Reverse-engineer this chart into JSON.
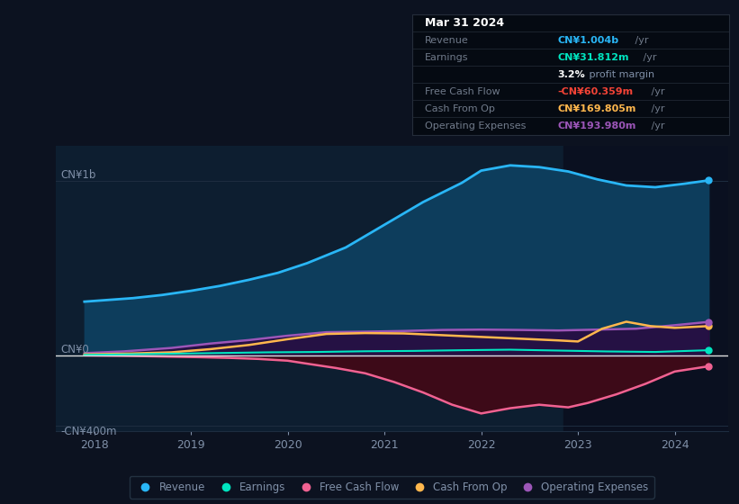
{
  "bg_color": "#0c1220",
  "plot_bg_color": "#0d1e30",
  "ylabel_top": "CN¥1b",
  "ylabel_zero": "CN¥0",
  "ylabel_bottom": "-CN¥400m",
  "ylim": [
    -430,
    1200
  ],
  "xlim": [
    2017.6,
    2024.55
  ],
  "xticks": [
    2018,
    2019,
    2020,
    2021,
    2022,
    2023,
    2024
  ],
  "revenue_x": [
    2017.9,
    2018.1,
    2018.4,
    2018.7,
    2019.0,
    2019.3,
    2019.6,
    2019.9,
    2020.2,
    2020.6,
    2021.0,
    2021.4,
    2021.8,
    2022.0,
    2022.3,
    2022.6,
    2022.9,
    2023.2,
    2023.5,
    2023.8,
    2024.1,
    2024.35
  ],
  "revenue_y": [
    310,
    318,
    330,
    348,
    372,
    400,
    435,
    475,
    530,
    620,
    750,
    880,
    990,
    1060,
    1090,
    1080,
    1055,
    1010,
    975,
    965,
    985,
    1004
  ],
  "earnings_x": [
    2017.9,
    2018.3,
    2018.8,
    2019.3,
    2019.8,
    2020.3,
    2020.8,
    2021.3,
    2021.8,
    2022.3,
    2022.8,
    2023.3,
    2023.8,
    2024.35
  ],
  "earnings_y": [
    5,
    8,
    12,
    16,
    20,
    22,
    26,
    28,
    32,
    35,
    30,
    25,
    22,
    32
  ],
  "fcf_x": [
    2017.9,
    2018.3,
    2018.8,
    2019.1,
    2019.4,
    2019.7,
    2020.0,
    2020.2,
    2020.5,
    2020.8,
    2021.1,
    2021.4,
    2021.7,
    2022.0,
    2022.3,
    2022.6,
    2022.9,
    2023.1,
    2023.4,
    2023.7,
    2024.0,
    2024.35
  ],
  "fcf_y": [
    3,
    0,
    -5,
    -8,
    -12,
    -18,
    -28,
    -45,
    -70,
    -100,
    -150,
    -210,
    -280,
    -330,
    -300,
    -280,
    -295,
    -270,
    -220,
    -160,
    -90,
    -60
  ],
  "cashfromop_x": [
    2017.9,
    2018.3,
    2018.8,
    2019.2,
    2019.6,
    2020.0,
    2020.4,
    2020.8,
    2021.2,
    2021.6,
    2022.0,
    2022.4,
    2022.8,
    2023.0,
    2023.25,
    2023.5,
    2023.75,
    2024.0,
    2024.35
  ],
  "cashfromop_y": [
    8,
    12,
    20,
    38,
    62,
    95,
    125,
    130,
    128,
    118,
    108,
    98,
    88,
    82,
    155,
    195,
    170,
    160,
    170
  ],
  "opex_x": [
    2017.9,
    2018.3,
    2018.8,
    2019.2,
    2019.6,
    2020.0,
    2020.4,
    2020.8,
    2021.2,
    2021.6,
    2022.0,
    2022.4,
    2022.8,
    2023.2,
    2023.6,
    2024.0,
    2024.35
  ],
  "opex_y": [
    15,
    25,
    45,
    70,
    90,
    115,
    135,
    138,
    142,
    148,
    150,
    148,
    145,
    150,
    155,
    175,
    194
  ],
  "revenue_color": "#29b6f6",
  "revenue_fill": "#0d3d5c",
  "earnings_color": "#00e5c0",
  "fcf_color": "#f06292",
  "fcf_fill": "#3d0a18",
  "cashfromop_color": "#ffb74d",
  "opex_color": "#9c56b8",
  "opex_fill": "#2a0a40",
  "highlight_start": 2022.85,
  "highlight_color": "#0a1020",
  "grid_color": "#1e2d40",
  "zero_line_color": "#e0e0e0",
  "text_color": "#8090a8",
  "legend_bg": "#0c1220",
  "legend_border": "#2a3a4a",
  "info_box_bg": "#050a12",
  "info_box_border": "#252d3a",
  "info_date_color": "#ffffff",
  "info_label_color": "#707a8a",
  "info_revenue_color": "#29b6f6",
  "info_earnings_color": "#00e5c0",
  "info_margin_pct_color": "#ffffff",
  "info_margin_text_color": "#8090a8",
  "info_fcf_color": "#f44336",
  "info_cashfromop_color": "#ffb74d",
  "info_opex_color": "#9c56b8"
}
